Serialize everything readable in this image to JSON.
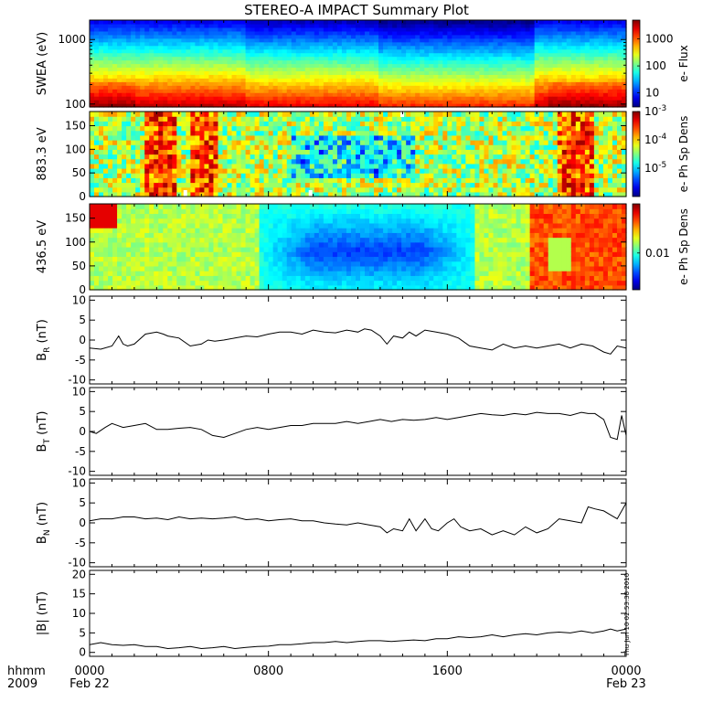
{
  "title": "STEREO-A IMPACT Summary Plot",
  "stamp": "Thu Jun 10 02:53:38 2010",
  "x_axis": {
    "left_labels": [
      "hhmm",
      "2009"
    ],
    "ticks": [
      {
        "h": 0,
        "line1": "0000",
        "line2": "Feb 22"
      },
      {
        "h": 8,
        "line1": "0800",
        "line2": ""
      },
      {
        "h": 16,
        "line1": "1600",
        "line2": ""
      },
      {
        "h": 24,
        "line1": "0000",
        "line2": "Feb 23"
      }
    ],
    "range_hours": [
      0,
      24
    ]
  },
  "chart_data": [
    {
      "type": "heatmap",
      "id": "swea",
      "ylabel": "SWEA (eV)",
      "yscale": "log",
      "ylim": [
        90,
        2000
      ],
      "yticks": [
        {
          "v": 100,
          "label": "100"
        },
        {
          "v": 1000,
          "label": "1000"
        }
      ],
      "colorbar": {
        "label": "e- Flux",
        "scale": "log",
        "range": [
          3,
          5000
        ],
        "ticks": [
          {
            "v": 10,
            "label": "10"
          },
          {
            "v": 100,
            "label": "100"
          },
          {
            "v": 1000,
            "label": "1000"
          }
        ]
      },
      "description_values": {
        "low_energy_flux": 3000,
        "high_energy_flux": 5
      }
    },
    {
      "type": "heatmap",
      "id": "pad883",
      "ylabel": "883.3 eV",
      "ylim": [
        0,
        180
      ],
      "yticks": [
        {
          "v": 0,
          "label": "0"
        },
        {
          "v": 50,
          "label": "50"
        },
        {
          "v": 100,
          "label": "100"
        },
        {
          "v": 150,
          "label": "150"
        }
      ],
      "colorbar": {
        "label": "e- Ph Sp Dens",
        "scale": "log",
        "range": [
          1e-06,
          0.001
        ],
        "ticks": [
          {
            "v": 0.001,
            "base": "10",
            "exp": "-3"
          },
          {
            "v": 0.0001,
            "base": "10",
            "exp": "-4"
          },
          {
            "v": 1e-05,
            "base": "10",
            "exp": "-5"
          }
        ]
      }
    },
    {
      "type": "heatmap",
      "id": "pad436",
      "ylabel": "436.5 eV",
      "ylim": [
        0,
        180
      ],
      "yticks": [
        {
          "v": 0,
          "label": "0"
        },
        {
          "v": 50,
          "label": "50"
        },
        {
          "v": 100,
          "label": "100"
        },
        {
          "v": 150,
          "label": "150"
        }
      ],
      "colorbar": {
        "label": "e- Ph Sp Dens",
        "scale": "log",
        "range": [
          0.003,
          0.05
        ],
        "ticks": [
          {
            "v": 0.01,
            "label": "0.01"
          }
        ]
      }
    },
    {
      "type": "line",
      "id": "br",
      "ylabel_main": "B",
      "ylabel_sub": "R",
      "ylabel_unit": "(nT)",
      "ylim": [
        -11,
        11
      ],
      "yticks": [
        -10,
        -5,
        0,
        5,
        10
      ],
      "x": [
        0,
        0.5,
        1,
        1.3,
        1.5,
        1.7,
        2,
        2.5,
        3,
        3.3,
        3.5,
        4,
        4.5,
        5,
        5.3,
        5.6,
        6,
        6.5,
        7,
        7.5,
        8,
        8.5,
        9,
        9.5,
        10,
        10.5,
        11,
        11.5,
        12,
        12.3,
        12.6,
        13,
        13.3,
        13.6,
        14,
        14.3,
        14.6,
        15,
        15.5,
        16,
        16.5,
        17,
        17.5,
        18,
        18.5,
        19,
        19.5,
        20,
        20.5,
        21,
        21.5,
        22,
        22.5,
        23,
        23.3,
        23.6,
        24
      ],
      "y": [
        -2,
        -2.3,
        -1.5,
        1,
        -1,
        -1.5,
        -1,
        1.5,
        2,
        1.5,
        1,
        0.5,
        -1.5,
        -1,
        0,
        -0.3,
        0,
        0.5,
        1,
        0.8,
        1.5,
        2,
        2,
        1.5,
        2.5,
        2,
        1.8,
        2.5,
        2,
        2.8,
        2.5,
        1,
        -1,
        1,
        0.5,
        2,
        1,
        2.5,
        2,
        1.5,
        0.5,
        -1.5,
        -2,
        -2.5,
        -1,
        -2,
        -1.5,
        -2,
        -1.5,
        -1,
        -2,
        -1,
        -1.5,
        -3,
        -3.5,
        -1.5,
        -2
      ]
    },
    {
      "type": "line",
      "id": "bt",
      "ylabel_main": "B",
      "ylabel_sub": "T",
      "ylabel_unit": "(nT)",
      "ylim": [
        -11,
        11
      ],
      "yticks": [
        -10,
        -5,
        0,
        5,
        10
      ],
      "x": [
        0,
        0.3,
        0.7,
        1,
        1.5,
        2,
        2.5,
        3,
        3.5,
        4,
        4.5,
        5,
        5.5,
        6,
        6.5,
        7,
        7.5,
        8,
        8.5,
        9,
        9.5,
        10,
        10.5,
        11,
        11.5,
        12,
        12.5,
        13,
        13.5,
        14,
        14.5,
        15,
        15.5,
        16,
        16.5,
        17,
        17.5,
        18,
        18.5,
        19,
        19.5,
        20,
        20.5,
        21,
        21.5,
        22,
        22.3,
        22.6,
        23,
        23.3,
        23.6,
        23.8,
        24
      ],
      "y": [
        0,
        -0.5,
        1,
        2,
        1,
        1.5,
        2,
        0.5,
        0.5,
        0.8,
        1,
        0.5,
        -1,
        -1.5,
        -0.5,
        0.5,
        1,
        0.5,
        1,
        1.5,
        1.5,
        2,
        2,
        2,
        2.5,
        2,
        2.5,
        3,
        2.5,
        3,
        2.8,
        3,
        3.5,
        3,
        3.5,
        4,
        4.5,
        4.2,
        4,
        4.5,
        4.2,
        4.8,
        4.5,
        4.5,
        4,
        4.8,
        4.5,
        4.5,
        3,
        -1.5,
        -2,
        4,
        -1
      ]
    },
    {
      "type": "line",
      "id": "bn",
      "ylabel_main": "B",
      "ylabel_sub": "N",
      "ylabel_unit": "(nT)",
      "ylim": [
        -11,
        11
      ],
      "yticks": [
        -10,
        -5,
        0,
        5,
        10
      ],
      "x": [
        0,
        0.5,
        1,
        1.5,
        2,
        2.5,
        3,
        3.5,
        4,
        4.5,
        5,
        5.5,
        6,
        6.5,
        7,
        7.5,
        8,
        8.5,
        9,
        9.5,
        10,
        10.5,
        11,
        11.5,
        12,
        12.5,
        13,
        13.3,
        13.6,
        14,
        14.3,
        14.6,
        15,
        15.3,
        15.6,
        16,
        16.3,
        16.6,
        17,
        17.5,
        18,
        18.5,
        19,
        19.5,
        20,
        20.5,
        21,
        21.5,
        22,
        22.3,
        22.6,
        23,
        23.3,
        23.6,
        24
      ],
      "y": [
        0.5,
        1,
        1,
        1.5,
        1.5,
        1,
        1.2,
        0.8,
        1.5,
        1,
        1.2,
        1,
        1.2,
        1.5,
        0.8,
        1,
        0.5,
        0.8,
        1,
        0.5,
        0.5,
        0,
        -0.3,
        -0.5,
        0,
        -0.5,
        -1,
        -2.5,
        -1.5,
        -2,
        1,
        -2,
        1,
        -1.5,
        -2,
        0,
        1,
        -1,
        -2,
        -1.5,
        -3,
        -2,
        -3,
        -1,
        -2.5,
        -1.5,
        1,
        0.5,
        0,
        4,
        3.5,
        3,
        2,
        1,
        5
      ]
    },
    {
      "type": "line",
      "id": "bmag",
      "ylabel_main": "|B|",
      "ylabel_sub": "",
      "ylabel_unit": "(nT)",
      "ylim": [
        -1,
        21
      ],
      "yticks": [
        0,
        5,
        10,
        15,
        20
      ],
      "x": [
        0,
        0.5,
        1,
        1.5,
        2,
        2.5,
        3,
        3.5,
        4,
        4.5,
        5,
        5.5,
        6,
        6.5,
        7,
        7.5,
        8,
        8.5,
        9,
        9.5,
        10,
        10.5,
        11,
        11.5,
        12,
        12.5,
        13,
        13.5,
        14,
        14.5,
        15,
        15.5,
        16,
        16.5,
        17,
        17.5,
        18,
        18.5,
        19,
        19.5,
        20,
        20.5,
        21,
        21.5,
        22,
        22.5,
        23,
        23.3,
        23.6,
        24
      ],
      "y": [
        2,
        2.5,
        2,
        1.8,
        2,
        1.5,
        1.5,
        1,
        1.2,
        1.5,
        1,
        1.2,
        1.5,
        1,
        1.3,
        1.5,
        1.6,
        2,
        2,
        2.2,
        2.5,
        2.5,
        2.8,
        2.5,
        2.8,
        3,
        3,
        2.8,
        3,
        3.2,
        3,
        3.5,
        3.5,
        4,
        3.8,
        4,
        4.5,
        4,
        4.5,
        4.8,
        4.5,
        5,
        5.2,
        5,
        5.5,
        5,
        5.5,
        6,
        5.5,
        6
      ]
    }
  ]
}
